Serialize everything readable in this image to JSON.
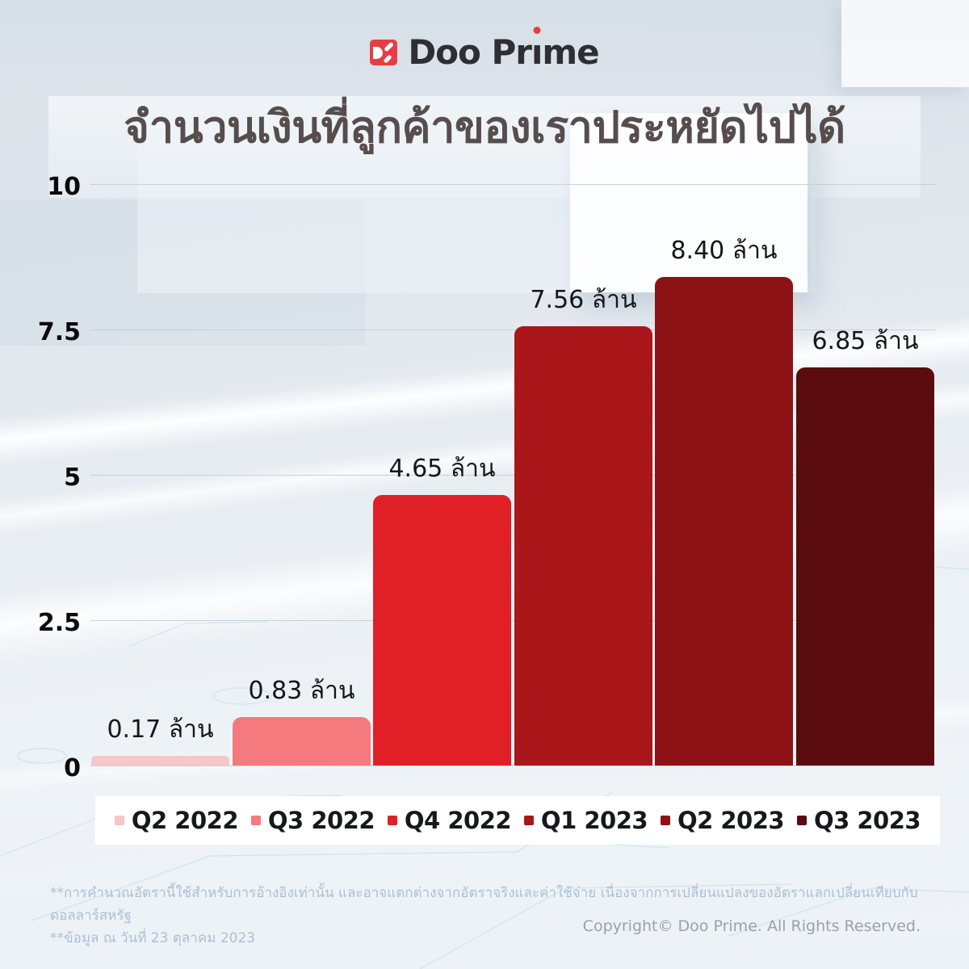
{
  "logo": {
    "brand_full": "Doo Prime",
    "brand_pre": "Doo Pr",
    "brand_i": "ı",
    "brand_post": "me"
  },
  "title": "จำนวนเงินที่ลูกค้าของเราประหยัดไปได้",
  "chart_data": {
    "type": "bar",
    "title": "จำนวนเงินที่ลูกค้าของเราประหยัดไปได้",
    "unit_suffix": "ล้าน",
    "categories": [
      "Q2 2022",
      "Q3 2022",
      "Q4 2022",
      "Q1 2023",
      "Q2 2023",
      "Q3 2023"
    ],
    "values": [
      0.17,
      0.83,
      4.65,
      7.56,
      8.4,
      6.85
    ],
    "value_labels": [
      "0.17 ล้าน",
      "0.83 ล้าน",
      "4.65 ล้าน",
      "7.56 ล้าน",
      "8.40 ล้าน",
      "6.85 ล้าน"
    ],
    "bar_colors": [
      "#F8C5C8",
      "#F47A7D",
      "#E02026",
      "#A9171A",
      "#8C1215",
      "#5B0C0E"
    ],
    "ylim": [
      0,
      10
    ],
    "ytick_labels": [
      "10",
      "7.5",
      "5",
      "2.5",
      "0"
    ],
    "ytick_values": [
      10,
      7.5,
      5,
      2.5,
      0
    ],
    "grid": true,
    "xlabel": "",
    "ylabel": "",
    "legend_position": "bottom"
  },
  "footnotes": {
    "line1": "**การคำนวณอัตรานี้ใช้สำหรับการอ้างอิงเท่านั้น และอาจแตกต่างจากอัตราจริงและค่าใช้จ่าย เนื่องจากการเปลี่ยนแปลงของอัตราแลกเปลี่ยนเทียบกับดอลลาร์สหรัฐ",
    "line2": "**ข้อมูล ณ วันที่ 23 ตุลาคม 2023"
  },
  "copyright": "Copyright© Doo Prime. All Rights Reserved.",
  "colors": {
    "brand_red": "#E63E44",
    "title_text": "#574D4D",
    "axis_text": "#0B0B0C",
    "label_text": "#15161A",
    "gridline": "#C6CCD4",
    "legend_bg": "#FFFFFF",
    "footnote_text": "#AAC0D4",
    "copyright_text": "#9BA1A9"
  }
}
